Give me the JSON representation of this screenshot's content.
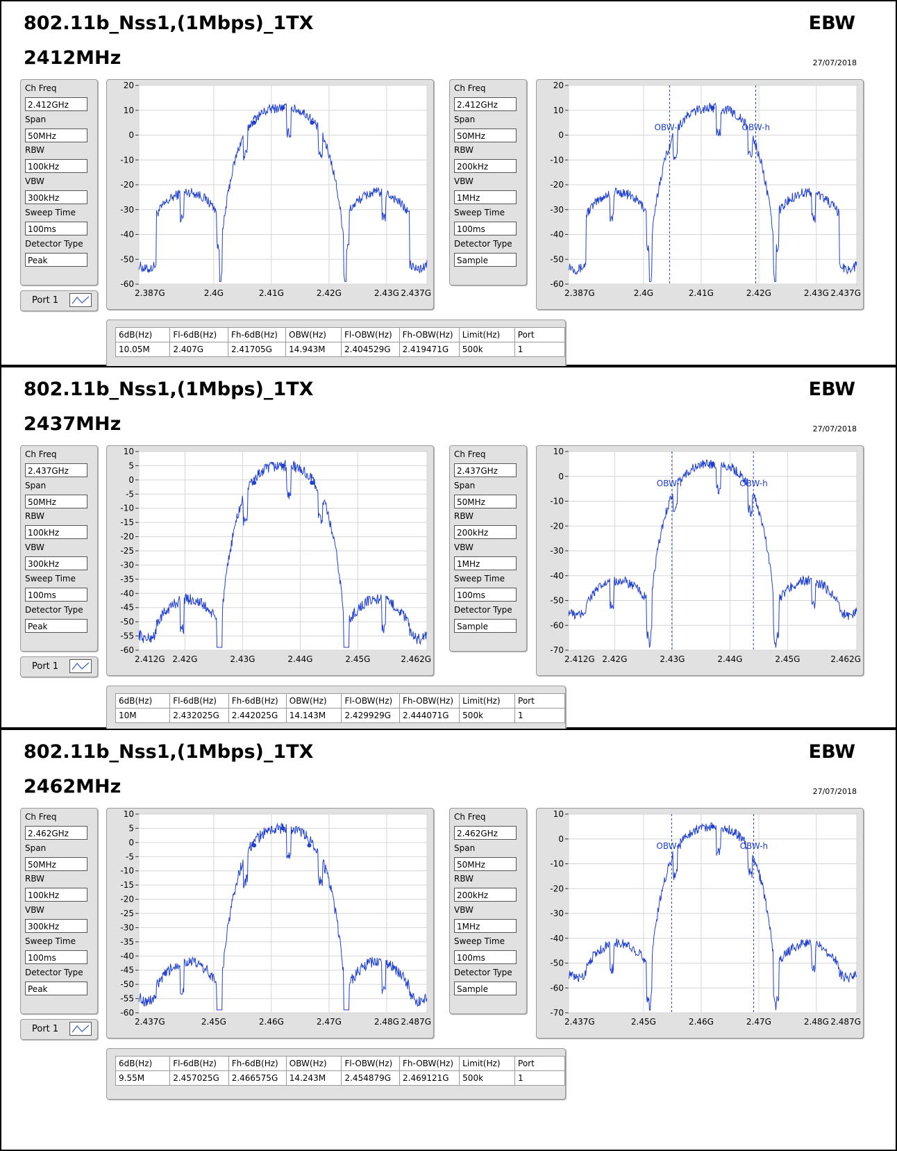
{
  "sections": [
    {
      "title": "802.11b_Nss1,(1Mbps)_1TX",
      "tag": "EBW",
      "freq": "2412MHz",
      "date": "27/07/2018",
      "left_panel": {
        "ch_freq_label": "Ch Freq",
        "ch_freq": "2.412GHz",
        "span_label": "Span",
        "span": "50MHz",
        "rbw_label": "RBW",
        "rbw": "100kHz",
        "vbw_label": "VBW",
        "vbw": "300kHz",
        "sweep_label": "Sweep Time",
        "sweep": "100ms",
        "det_label": "Detector Type",
        "det": "Peak"
      },
      "right_panel": {
        "ch_freq_label": "Ch Freq",
        "ch_freq": "2.412GHz",
        "span_label": "Span",
        "span": "50MHz",
        "rbw_label": "RBW",
        "rbw": "200kHz",
        "vbw_label": "VBW",
        "vbw": "1MHz",
        "sweep_label": "Sweep Time",
        "sweep": "100ms",
        "det_label": "Detector Type",
        "det": "Sample"
      },
      "port_label": "Port 1",
      "table": {
        "headers": [
          "6dB(Hz)",
          "Fl-6dB(Hz)",
          "Fh-6dB(Hz)",
          "OBW(Hz)",
          "Fl-OBW(Hz)",
          "Fh-OBW(Hz)",
          "Limit(Hz)",
          "Port"
        ],
        "values": [
          "10.05M",
          "2.407G",
          "2.41705G",
          "14.943M",
          "2.404529G",
          "2.419471G",
          "500k",
          "1"
        ]
      }
    },
    {
      "title": "802.11b_Nss1,(1Mbps)_1TX",
      "tag": "EBW",
      "freq": "2437MHz",
      "date": "27/07/2018",
      "left_panel": {
        "ch_freq_label": "Ch Freq",
        "ch_freq": "2.437GHz",
        "span_label": "Span",
        "span": "50MHz",
        "rbw_label": "RBW",
        "rbw": "100kHz",
        "vbw_label": "VBW",
        "vbw": "300kHz",
        "sweep_label": "Sweep Time",
        "sweep": "100ms",
        "det_label": "Detector Type",
        "det": "Peak"
      },
      "right_panel": {
        "ch_freq_label": "Ch Freq",
        "ch_freq": "2.437GHz",
        "span_label": "Span",
        "span": "50MHz",
        "rbw_label": "RBW",
        "rbw": "200kHz",
        "vbw_label": "VBW",
        "vbw": "1MHz",
        "sweep_label": "Sweep Time",
        "sweep": "100ms",
        "det_label": "Detector Type",
        "det": "Sample"
      },
      "port_label": "Port 1",
      "table": {
        "headers": [
          "6dB(Hz)",
          "Fl-6dB(Hz)",
          "Fh-6dB(Hz)",
          "OBW(Hz)",
          "Fl-OBW(Hz)",
          "Fh-OBW(Hz)",
          "Limit(Hz)",
          "Port"
        ],
        "values": [
          "10M",
          "2.432025G",
          "2.442025G",
          "14.143M",
          "2.429929G",
          "2.444071G",
          "500k",
          "1"
        ]
      }
    },
    {
      "title": "802.11b_Nss1,(1Mbps)_1TX",
      "tag": "EBW",
      "freq": "2462MHz",
      "date": "27/07/2018",
      "left_panel": {
        "ch_freq_label": "Ch Freq",
        "ch_freq": "2.462GHz",
        "span_label": "Span",
        "span": "50MHz",
        "rbw_label": "RBW",
        "rbw": "100kHz",
        "vbw_label": "VBW",
        "vbw": "300kHz",
        "sweep_label": "Sweep Time",
        "sweep": "100ms",
        "det_label": "Detector Type",
        "det": "Peak"
      },
      "right_panel": {
        "ch_freq_label": "Ch Freq",
        "ch_freq": "2.462GHz",
        "span_label": "Span",
        "span": "50MHz",
        "rbw_label": "RBW",
        "rbw": "200kHz",
        "vbw_label": "VBW",
        "vbw": "1MHz",
        "sweep_label": "Sweep Time",
        "sweep": "100ms",
        "det_label": "Detector Type",
        "det": "Sample"
      },
      "port_label": "Port 1",
      "table": {
        "headers": [
          "6dB(Hz)",
          "Fl-6dB(Hz)",
          "Fh-6dB(Hz)",
          "OBW(Hz)",
          "Fl-OBW(Hz)",
          "Fh-OBW(Hz)",
          "Limit(Hz)",
          "Port"
        ],
        "values": [
          "9.55M",
          "2.457025G",
          "2.466575G",
          "14.243M",
          "2.454879G",
          "2.469121G",
          "500k",
          "1"
        ]
      }
    }
  ],
  "colors": {
    "trace": "#1f3fd0",
    "plot_bg": "#ffffff",
    "panel_bg": "#e1e1e1",
    "grid": "#d6d6d6"
  },
  "chart_data": [
    {
      "type": "line",
      "title": "",
      "xunit": "GHz",
      "xlim": [
        2.387,
        2.437
      ],
      "ylim": [
        -60,
        20
      ],
      "yticks": [
        20,
        10,
        0,
        -10,
        -20,
        -30,
        -40,
        -50,
        -60
      ],
      "xticks": [
        "2.387G",
        "2.4G",
        "2.41G",
        "2.42G",
        "2.43G",
        "2.437G"
      ],
      "xtick_values": [
        2.387,
        2.4,
        2.41,
        2.42,
        2.43,
        2.437
      ],
      "center": 2.412,
      "peak": 11,
      "side_level": -23,
      "floor": -52,
      "markers": [
        2.407,
        2.41705
      ],
      "marker_labels": []
    },
    {
      "type": "line",
      "title": "",
      "xunit": "GHz",
      "xlim": [
        2.387,
        2.437
      ],
      "ylim": [
        -60,
        20
      ],
      "yticks": [
        20,
        10,
        0,
        -10,
        -20,
        -30,
        -40,
        -50,
        -60
      ],
      "xticks": [
        "2.387G",
        "2.4G",
        "2.41G",
        "2.42G",
        "2.43G",
        "2.437G"
      ],
      "xtick_values": [
        2.387,
        2.4,
        2.41,
        2.42,
        2.43,
        2.437
      ],
      "center": 2.412,
      "peak": 11,
      "side_level": -23,
      "floor": -52,
      "markers": [],
      "obw_lines": [
        2.404529,
        2.419471
      ],
      "marker_labels": [
        "OBW-l",
        "OBW-h"
      ]
    },
    {
      "type": "line",
      "title": "",
      "xunit": "GHz",
      "xlim": [
        2.412,
        2.462
      ],
      "ylim": [
        -60,
        10
      ],
      "yticks": [
        10,
        5,
        0,
        -5,
        -10,
        -15,
        -20,
        -25,
        -30,
        -35,
        -40,
        -45,
        -50,
        -55,
        -60
      ],
      "xticks": [
        "2.412G",
        "2.42G",
        "2.43G",
        "2.44G",
        "2.45G",
        "2.462G"
      ],
      "xtick_values": [
        2.412,
        2.42,
        2.43,
        2.44,
        2.45,
        2.462
      ],
      "center": 2.437,
      "peak": 5,
      "side_level": -42,
      "floor": -54,
      "markers": [
        2.432025,
        2.442025
      ],
      "marker_labels": []
    },
    {
      "type": "line",
      "title": "",
      "xunit": "GHz",
      "xlim": [
        2.412,
        2.462
      ],
      "ylim": [
        -70,
        10
      ],
      "yticks": [
        10,
        0,
        -10,
        -20,
        -30,
        -40,
        -50,
        -60,
        -70
      ],
      "xticks": [
        "2.412G",
        "2.42G",
        "2.43G",
        "2.44G",
        "2.45G",
        "2.462G"
      ],
      "xtick_values": [
        2.412,
        2.42,
        2.43,
        2.44,
        2.45,
        2.462
      ],
      "center": 2.437,
      "peak": 5,
      "side_level": -42,
      "floor": -54,
      "markers": [],
      "obw_lines": [
        2.429929,
        2.444071
      ],
      "marker_labels": [
        "OBW-l",
        "OBW-h"
      ]
    },
    {
      "type": "line",
      "title": "",
      "xunit": "GHz",
      "xlim": [
        2.437,
        2.487
      ],
      "ylim": [
        -60,
        10
      ],
      "yticks": [
        10,
        5,
        0,
        -5,
        -10,
        -15,
        -20,
        -25,
        -30,
        -35,
        -40,
        -45,
        -50,
        -55,
        -60
      ],
      "xticks": [
        "2.437G",
        "2.45G",
        "2.46G",
        "2.47G",
        "2.48G",
        "2.487G"
      ],
      "xtick_values": [
        2.437,
        2.45,
        2.46,
        2.47,
        2.48,
        2.487
      ],
      "center": 2.462,
      "peak": 5,
      "side_level": -42,
      "floor": -54,
      "markers": [
        2.457025,
        2.466575
      ],
      "marker_labels": []
    },
    {
      "type": "line",
      "title": "",
      "xunit": "GHz",
      "xlim": [
        2.437,
        2.487
      ],
      "ylim": [
        -70,
        10
      ],
      "yticks": [
        10,
        0,
        -10,
        -20,
        -30,
        -40,
        -50,
        -60,
        -70
      ],
      "xticks": [
        "2.437G",
        "2.45G",
        "2.46G",
        "2.47G",
        "2.48G",
        "2.487G"
      ],
      "xtick_values": [
        2.437,
        2.45,
        2.46,
        2.47,
        2.48,
        2.487
      ],
      "center": 2.462,
      "peak": 5,
      "side_level": -42,
      "floor": -54,
      "markers": [],
      "obw_lines": [
        2.454879,
        2.469121
      ],
      "marker_labels": [
        "OBW-l",
        "OBW-h"
      ]
    }
  ]
}
